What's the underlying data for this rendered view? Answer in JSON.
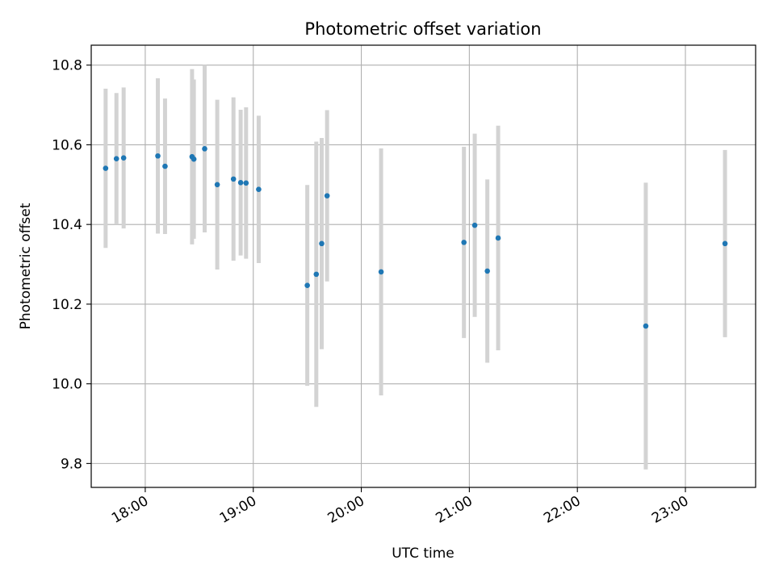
{
  "chart_data": {
    "type": "scatter",
    "title": "Photometric offset variation",
    "xlabel": "UTC time",
    "ylabel": "Photometric offset",
    "x_unit": "UTC hours",
    "xlim": [
      "17:30",
      "23:39"
    ],
    "ylim": [
      9.74,
      10.85
    ],
    "x_ticks": [
      "18:00",
      "19:00",
      "20:00",
      "21:00",
      "22:00",
      "23:00"
    ],
    "y_ticks": [
      "9.8",
      "10.0",
      "10.2",
      "10.4",
      "10.6",
      "10.8"
    ],
    "grid": true,
    "legend": "none",
    "colors": {
      "point": "#1f77b4",
      "errorbar": "#d3d3d3",
      "grid": "#b0b0b0"
    },
    "points": [
      {
        "x": "17:38",
        "y": 10.541,
        "err": 0.2
      },
      {
        "x": "17:44",
        "y": 10.565,
        "err": 0.165
      },
      {
        "x": "17:48",
        "y": 10.567,
        "err": 0.177
      },
      {
        "x": "18:07",
        "y": 10.572,
        "err": 0.195
      },
      {
        "x": "18:11",
        "y": 10.546,
        "err": 0.17
      },
      {
        "x": "18:26",
        "y": 10.57,
        "err": 0.22
      },
      {
        "x": "18:27",
        "y": 10.564,
        "err": 0.2
      },
      {
        "x": "18:33",
        "y": 10.59,
        "err": 0.21
      },
      {
        "x": "18:40",
        "y": 10.5,
        "err": 0.213
      },
      {
        "x": "18:49",
        "y": 10.514,
        "err": 0.205
      },
      {
        "x": "18:53",
        "y": 10.505,
        "err": 0.183
      },
      {
        "x": "18:56",
        "y": 10.504,
        "err": 0.19
      },
      {
        "x": "19:03",
        "y": 10.488,
        "err": 0.185
      },
      {
        "x": "19:30",
        "y": 10.247,
        "err": 0.252
      },
      {
        "x": "19:35",
        "y": 10.275,
        "err": 0.333
      },
      {
        "x": "19:38",
        "y": 10.352,
        "err": 0.265
      },
      {
        "x": "19:41",
        "y": 10.472,
        "err": 0.215
      },
      {
        "x": "20:11",
        "y": 10.281,
        "err": 0.31
      },
      {
        "x": "20:57",
        "y": 10.355,
        "err": 0.24
      },
      {
        "x": "21:03",
        "y": 10.398,
        "err": 0.23
      },
      {
        "x": "21:10",
        "y": 10.283,
        "err": 0.23
      },
      {
        "x": "21:16",
        "y": 10.366,
        "err": 0.282
      },
      {
        "x": "22:38",
        "y": 10.145,
        "err": 0.36
      },
      {
        "x": "23:22",
        "y": 10.352,
        "err": 0.235
      }
    ]
  }
}
